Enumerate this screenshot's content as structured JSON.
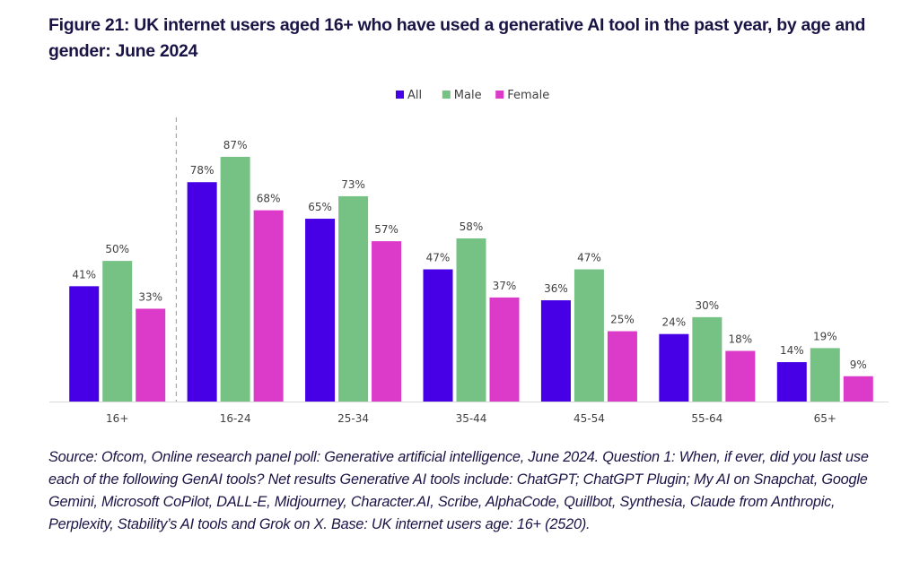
{
  "figure": {
    "title": "Figure 21: UK internet users aged 16+ who have used a generative AI tool in the past year, by age and gender: June 2024",
    "source": "Source: Ofcom, Online research panel poll: Generative artificial intelligence, June 2024. Question 1: When, if ever, did you last use each of the following GenAI tools? Net results Generative AI tools include: ChatGPT; ChatGPT Plugin; My AI on Snapchat, Google Gemini, Microsoft CoPilot, DALL-E, Midjourney, Character.AI, Scribe, AlphaCode, Quillbot, Synthesia, Claude from Anthropic, Perplexity, Stability’s AI tools and Grok on X. Base: UK internet users age: 16+ (2520)."
  },
  "chart_data": {
    "type": "bar",
    "title": "Figure 21: UK internet users aged 16+ who have used a generative AI tool in the past year, by age and gender: June 2024",
    "xlabel": "",
    "ylabel": "",
    "ylim": [
      0,
      100
    ],
    "grid": false,
    "legend_position": "top-center",
    "value_suffix": "%",
    "separator_after_category": "16+",
    "categories": [
      "16+",
      "16-24",
      "25-34",
      "35-44",
      "45-54",
      "55-64",
      "65+"
    ],
    "series": [
      {
        "name": "All",
        "color": "#4700e6",
        "values": [
          41,
          78,
          65,
          47,
          36,
          24,
          14
        ]
      },
      {
        "name": "Male",
        "color": "#76c285",
        "values": [
          50,
          87,
          73,
          58,
          47,
          30,
          19
        ]
      },
      {
        "name": "Female",
        "color": "#dc3ac8",
        "values": [
          33,
          68,
          57,
          37,
          25,
          18,
          9
        ]
      }
    ]
  }
}
